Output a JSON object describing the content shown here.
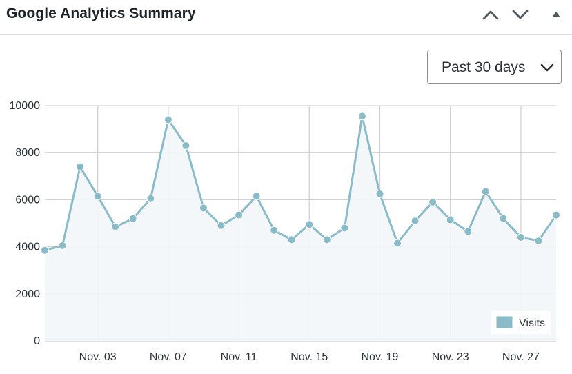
{
  "widget": {
    "title": "Google Analytics Summary",
    "buttons": {
      "move_up_icon": "chevron-up-icon",
      "move_down_icon": "chevron-down-icon",
      "toggle_icon": "triangle-up-icon"
    }
  },
  "range_select": {
    "selected": "Past 30 days",
    "icon": "chevron-down-icon"
  },
  "colors": {
    "line": "#89bbc8",
    "fill": "#f2f6f9",
    "grid": "#cfd3d6",
    "legend_swatch": "#89bbc8"
  },
  "chart_data": {
    "type": "area",
    "x": [
      "Oct. 31",
      "Nov. 01",
      "Nov. 02",
      "Nov. 03",
      "Nov. 04",
      "Nov. 05",
      "Nov. 06",
      "Nov. 07",
      "Nov. 08",
      "Nov. 09",
      "Nov. 10",
      "Nov. 11",
      "Nov. 12",
      "Nov. 13",
      "Nov. 14",
      "Nov. 15",
      "Nov. 16",
      "Nov. 17",
      "Nov. 18",
      "Nov. 19",
      "Nov. 20",
      "Nov. 21",
      "Nov. 22",
      "Nov. 23",
      "Nov. 24",
      "Nov. 25",
      "Nov. 26",
      "Nov. 27",
      "Nov. 28",
      "Nov. 29"
    ],
    "x_tick_labels": [
      "Nov. 03",
      "Nov. 07",
      "Nov. 11",
      "Nov. 15",
      "Nov. 19",
      "Nov. 23",
      "Nov. 27"
    ],
    "series": [
      {
        "name": "Visits",
        "values": [
          3850,
          4050,
          7400,
          6150,
          4850,
          5200,
          6050,
          9400,
          8300,
          5650,
          4900,
          5350,
          6150,
          4700,
          4300,
          4950,
          4300,
          4800,
          9550,
          6250,
          4150,
          5100,
          5900,
          5150,
          4650,
          6350,
          5200,
          4400,
          4250,
          5350
        ]
      }
    ],
    "y_ticks": [
      "0",
      "2000",
      "4000",
      "6000",
      "8000",
      "10000"
    ],
    "ylim": [
      0,
      10000
    ],
    "grid": true,
    "legend_position": "bottom-right"
  }
}
